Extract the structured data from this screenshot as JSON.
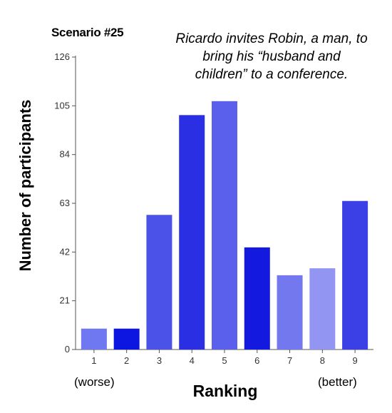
{
  "header": {
    "scenario": "Scenario #25",
    "caption_lines": [
      "Ricardo invites Robin, a man, to",
      "bring his “husband and",
      "children” to a conference."
    ]
  },
  "annotations": {
    "left_note": "(worse)",
    "right_note": "(better)"
  },
  "chart_data": {
    "type": "bar",
    "xlabel": "Ranking",
    "ylabel": "Number of participants",
    "categories": [
      "1",
      "2",
      "3",
      "4",
      "5",
      "6",
      "7",
      "8",
      "9"
    ],
    "values": [
      9,
      9,
      58,
      101,
      107,
      44,
      32,
      35,
      64
    ],
    "ylim": [
      0,
      126
    ],
    "yticks": [
      0,
      21,
      42,
      63,
      84,
      105,
      126
    ],
    "colors": [
      "#6f78f0",
      "#0d15e0",
      "#4a52e8",
      "#2a2fe3",
      "#5a5fec",
      "#1419df",
      "#7478ee",
      "#9296f2",
      "#3a3fe6"
    ],
    "grid": false,
    "legend": "none"
  }
}
